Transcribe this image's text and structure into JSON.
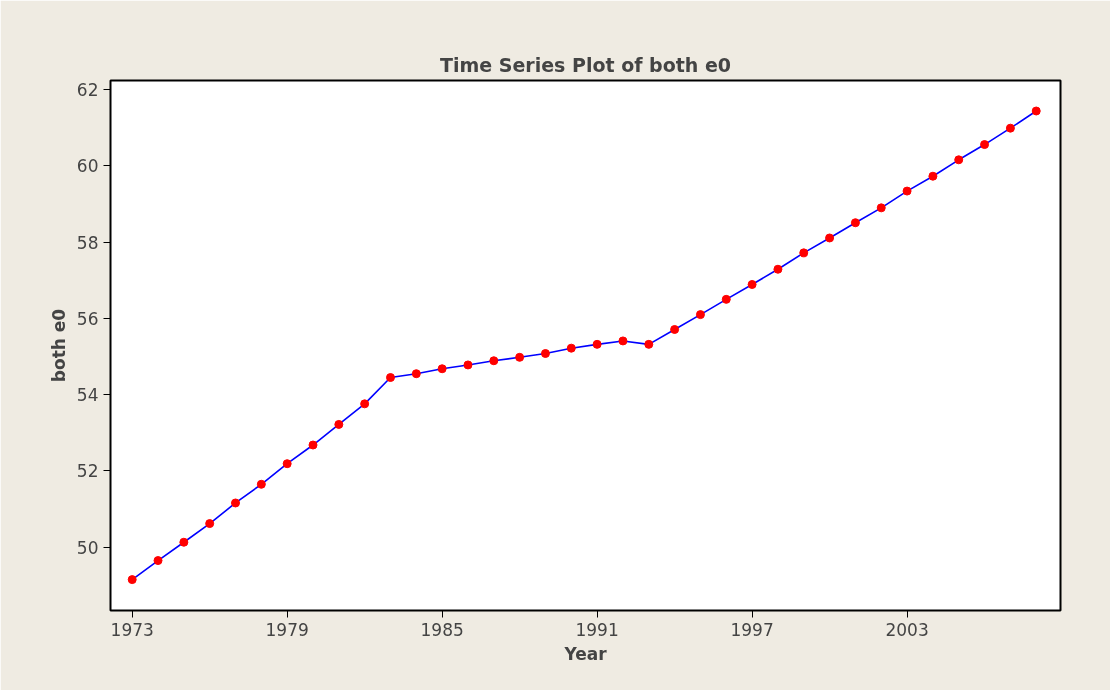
{
  "chart_data": {
    "type": "line",
    "title": "Time Series Plot of both e0",
    "xlabel": "Year",
    "ylabel": "both e0",
    "x": [
      1973,
      1974,
      1975,
      1976,
      1977,
      1978,
      1979,
      1980,
      1981,
      1982,
      1983,
      1984,
      1985,
      1986,
      1987,
      1988,
      1989,
      1990,
      1991,
      1992,
      1993,
      1994,
      1995,
      1996,
      1997,
      1998,
      1999,
      2000,
      2001,
      2002,
      2003,
      2004,
      2005,
      2006,
      2007,
      2008
    ],
    "series": [
      {
        "color": "#0000ff",
        "colors": [
          "#ff0000",
          "#ff0000",
          "#ff0000",
          "#ff0000",
          "#ff0000",
          "#ff0000",
          "#ff0000",
          "#ff0000",
          "#ff0000",
          "#ff0000",
          "#ff0000",
          "#ff0000",
          "#ff0000",
          "#ff0000",
          "#ff0000",
          "#ff0000",
          "#ff0000",
          "#ff0000",
          "#ff0000",
          "#ff0000",
          "#ff0000",
          "#ff0000",
          "#ff0000",
          "#ff0000",
          "#ff0000",
          "#ff0000",
          "#ff0000",
          "#ff0000",
          "#ff0000",
          "#ff0000",
          "#ff0000",
          "#ff0000",
          "#ff0000",
          "#ff0000",
          "#ff0000",
          "#ff0000"
        ],
        "values": [
          49.15,
          49.65,
          50.13,
          50.62,
          51.16,
          51.65,
          52.19,
          52.68,
          53.22,
          53.76,
          54.45,
          54.55,
          54.68,
          54.78,
          54.89,
          54.98,
          55.08,
          55.22,
          55.32,
          55.41,
          55.32,
          55.71,
          56.1,
          56.5,
          56.89,
          57.29,
          57.72,
          58.11,
          58.51,
          58.9,
          59.34,
          59.73,
          60.16,
          60.56,
          60.99,
          61.44
        ]
      }
    ],
    "xlim": [
      1972.16,
      2008.94
    ],
    "xticks": [
      1973,
      1979,
      1985,
      1991,
      1997,
      2003
    ],
    "ylim": [
      48.34,
      62.24
    ],
    "yticks": [
      50,
      52,
      54,
      56,
      58,
      60,
      62
    ],
    "grid": false,
    "marker": "circle",
    "line_style": "solid"
  }
}
